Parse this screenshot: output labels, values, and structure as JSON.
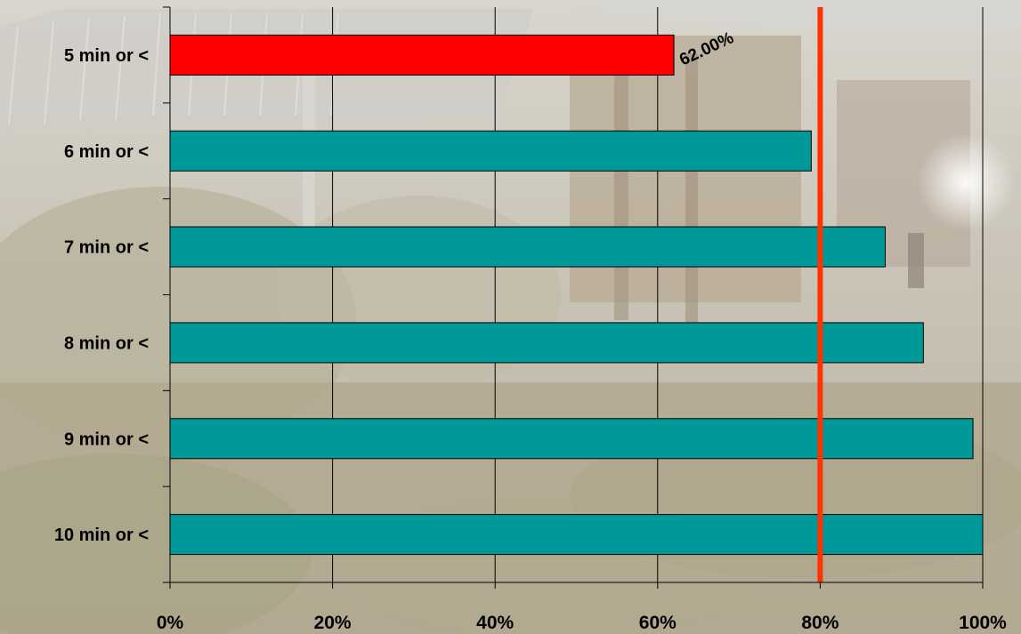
{
  "chart_data": {
    "type": "bar",
    "orientation": "horizontal",
    "categories": [
      "5 min or <",
      "6 min or <",
      "7 min or <",
      "8 min or <",
      "9 min or <",
      "10 min or <"
    ],
    "values": [
      62.0,
      78.9,
      88.0,
      92.7,
      98.8,
      100.0
    ],
    "bar_colors": [
      "#ff0000",
      "#009999",
      "#009999",
      "#009999",
      "#009999",
      "#009999"
    ],
    "data_labels": [
      {
        "category": "5 min or <",
        "text": "62.00%"
      }
    ],
    "xlim": [
      0,
      100
    ],
    "x_ticks": [
      0,
      20,
      40,
      60,
      80,
      100
    ],
    "x_tick_labels": [
      "0%",
      "20%",
      "40%",
      "60%",
      "80%",
      "100%"
    ],
    "reference_line": {
      "x": 80,
      "color": "#ff3300"
    },
    "grid": "vertical",
    "background": "photo of a building with landscaping (washed out)"
  }
}
